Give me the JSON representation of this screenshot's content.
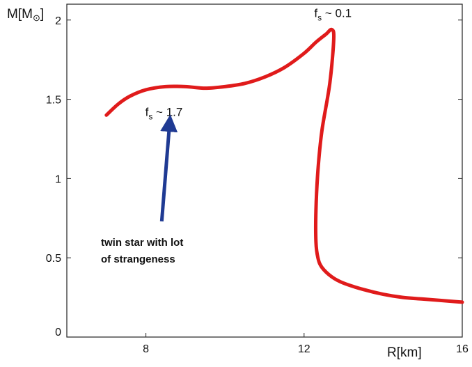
{
  "chart_data": {
    "type": "line",
    "xlabel": "R[km]",
    "ylabel": "M[M⊙]",
    "xlim": [
      6,
      16
    ],
    "ylim": [
      0,
      2.1
    ],
    "x_ticks": [
      "8",
      "12",
      "16"
    ],
    "y_ticks": [
      "0",
      "0.5",
      "1",
      "1.5",
      "2"
    ],
    "grid": false,
    "series": [
      {
        "color": "#e01b1b",
        "x": [
          7.0,
          7.3,
          7.6,
          8.0,
          8.5,
          9.0,
          9.5,
          10.0,
          10.5,
          11.0,
          11.5,
          12.0,
          12.3,
          12.55,
          12.7,
          12.75,
          12.65,
          12.45,
          12.35,
          12.3,
          12.3,
          12.35,
          12.45,
          12.7,
          13.0,
          13.5,
          14.0,
          14.5,
          15.0,
          15.5,
          16.0
        ],
        "y": [
          1.4,
          1.47,
          1.52,
          1.56,
          1.58,
          1.58,
          1.57,
          1.58,
          1.6,
          1.64,
          1.7,
          1.79,
          1.86,
          1.91,
          1.94,
          1.88,
          1.6,
          1.3,
          1.05,
          0.8,
          0.6,
          0.5,
          0.44,
          0.38,
          0.34,
          0.3,
          0.27,
          0.25,
          0.24,
          0.23,
          0.22
        ]
      }
    ],
    "annotations": {
      "top": {
        "text": "fs ~ 0.1",
        "x": 12.75,
        "y": 1.94
      },
      "twin": {
        "text": "fs ~ 1.7",
        "x": 8.0,
        "y": 1.5
      },
      "note_line1": "twin star with lot",
      "note_line2": "of strangeness",
      "arrow": {
        "x1": 8.4,
        "y1": 0.73,
        "x2": 8.6,
        "y2": 1.35,
        "color": "#1f3a93"
      }
    }
  }
}
